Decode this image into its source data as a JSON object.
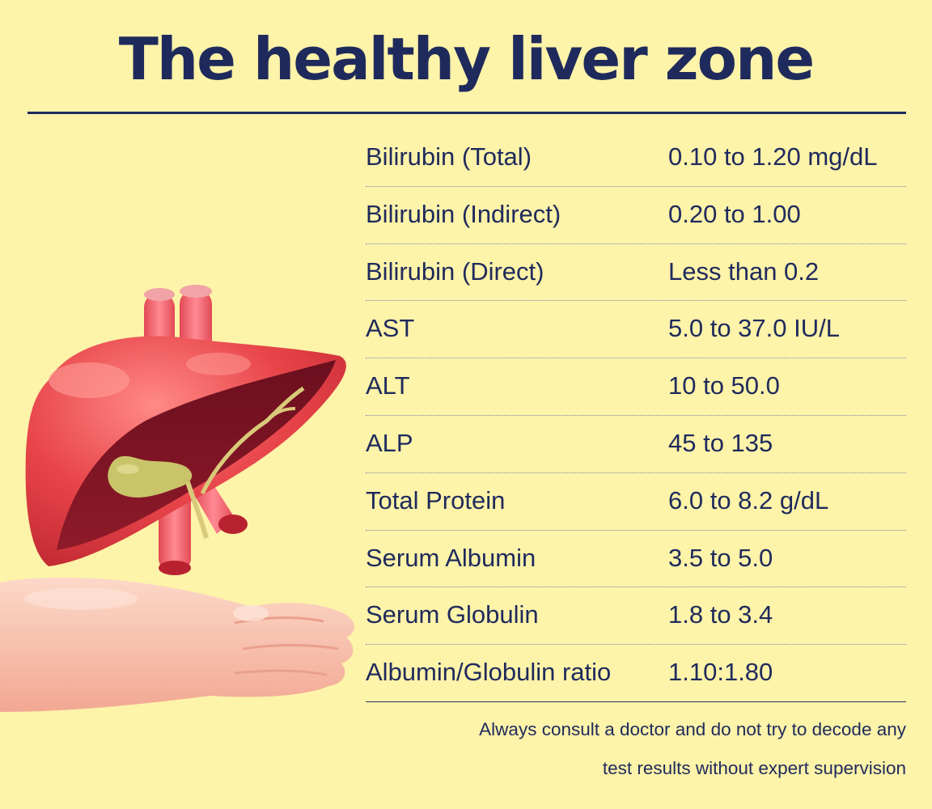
{
  "title": "The healthy liver zone",
  "rows": [
    {
      "name": "Bilirubin (Total)",
      "value": "0.10 to 1.20 mg/dL"
    },
    {
      "name": "Bilirubin (Indirect)",
      "value": "0.20 to 1.00"
    },
    {
      "name": "Bilirubin (Direct)",
      "value": "Less than 0.2"
    },
    {
      "name": "AST",
      "value": "5.0 to 37.0 IU/L"
    },
    {
      "name": "ALT",
      "value": "10 to 50.0"
    },
    {
      "name": "ALP",
      "value": "45 to 135"
    },
    {
      "name": "Total Protein",
      "value": "6.0 to 8.2 g/dL"
    },
    {
      "name": "Serum Albumin",
      "value": "3.5 to 5.0"
    },
    {
      "name": "Serum Globulin",
      "value": "1.8 to 3.4"
    },
    {
      "name": "Albumin/Globulin ratio",
      "value": "1.10:1.80"
    }
  ],
  "note": {
    "line1": "Always consult a doctor and do not try to decode any",
    "line2": "test results without expert supervision"
  },
  "colors": {
    "background": "#fdf3a9",
    "text": "#1f2a5c",
    "liver": "#e8454a",
    "hand": "#f7c3b0"
  },
  "icons": [
    "liver-illustration",
    "hand-illustration"
  ]
}
